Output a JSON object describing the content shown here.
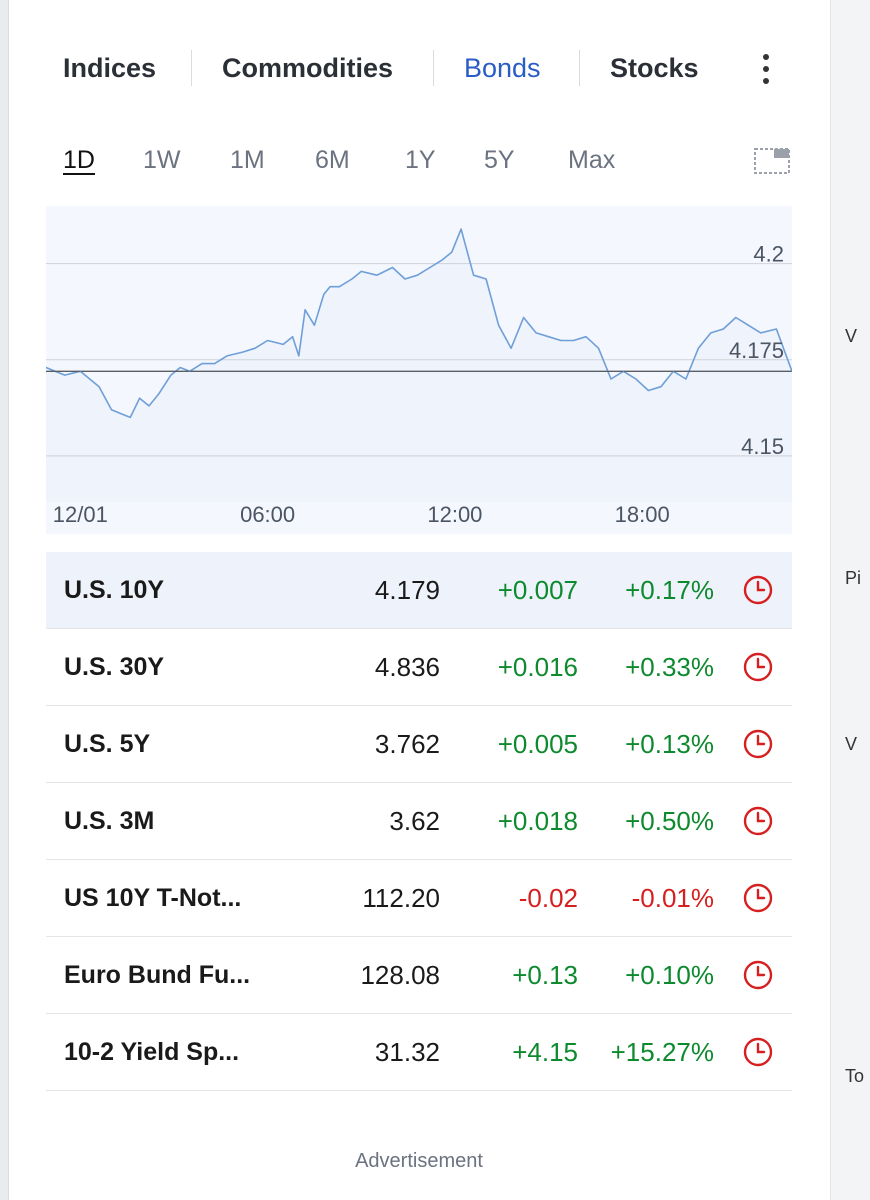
{
  "tabs": [
    {
      "label": "Indices",
      "active": false
    },
    {
      "label": "Commodities",
      "active": false
    },
    {
      "label": "Bonds",
      "active": true
    },
    {
      "label": "Stocks",
      "active": false
    }
  ],
  "ranges": [
    {
      "label": "1D",
      "active": true
    },
    {
      "label": "1W",
      "active": false
    },
    {
      "label": "1M",
      "active": false
    },
    {
      "label": "6M",
      "active": false
    },
    {
      "label": "1Y",
      "active": false
    },
    {
      "label": "5Y",
      "active": false
    },
    {
      "label": "Max",
      "active": false
    }
  ],
  "chart_data": {
    "type": "area",
    "x_tick_labels": [
      "12/01",
      "06:00",
      "12:00",
      "18:00"
    ],
    "y_tick_labels": [
      "4.2",
      "4.175",
      "4.15"
    ],
    "y_ticks": [
      4.2,
      4.175,
      4.15
    ],
    "ylim": [
      4.138,
      4.215
    ],
    "x_range_hours": [
      -1.1,
      22.8
    ],
    "reference_value": 4.172,
    "grid": true,
    "x": [
      -1.1,
      -0.5,
      0,
      0.6,
      1.0,
      1.3,
      1.6,
      1.9,
      2.2,
      2.5,
      2.9,
      3.2,
      3.5,
      3.9,
      4.3,
      4.7,
      5.2,
      5.6,
      6.0,
      6.5,
      6.8,
      7.0,
      7.2,
      7.5,
      7.8,
      8.0,
      8.3,
      8.7,
      9.0,
      9.5,
      10.0,
      10.4,
      10.8,
      11.2,
      11.6,
      11.9,
      12.2,
      12.6,
      13.0,
      13.4,
      13.8,
      14.2,
      14.6,
      15.0,
      15.4,
      15.8,
      16.2,
      16.6,
      17.0,
      17.4,
      17.8,
      18.2,
      18.6,
      19.0,
      19.4,
      19.8,
      20.2,
      20.6,
      21.0,
      21.4,
      21.8,
      22.3,
      22.8
    ],
    "values": [
      4.173,
      4.171,
      4.172,
      4.168,
      4.162,
      4.161,
      4.16,
      4.165,
      4.163,
      4.166,
      4.171,
      4.173,
      4.172,
      4.174,
      4.174,
      4.176,
      4.177,
      4.178,
      4.18,
      4.179,
      4.181,
      4.176,
      4.188,
      4.184,
      4.192,
      4.194,
      4.194,
      4.196,
      4.198,
      4.197,
      4.199,
      4.196,
      4.197,
      4.199,
      4.201,
      4.203,
      4.209,
      4.197,
      4.196,
      4.184,
      4.178,
      4.186,
      4.182,
      4.181,
      4.18,
      4.18,
      4.181,
      4.178,
      4.17,
      4.172,
      4.17,
      4.167,
      4.168,
      4.172,
      4.17,
      4.178,
      4.182,
      4.183,
      4.186,
      4.184,
      4.182,
      4.183,
      4.172
    ]
  },
  "quotes": [
    {
      "name": "U.S. 10Y",
      "last": "4.179",
      "chg": "+0.007",
      "pct": "+0.17%",
      "dir": "up",
      "selected": true
    },
    {
      "name": "U.S. 30Y",
      "last": "4.836",
      "chg": "+0.016",
      "pct": "+0.33%",
      "dir": "up",
      "selected": false
    },
    {
      "name": "U.S. 5Y",
      "last": "3.762",
      "chg": "+0.005",
      "pct": "+0.13%",
      "dir": "up",
      "selected": false
    },
    {
      "name": "U.S. 3M",
      "last": "3.62",
      "chg": "+0.018",
      "pct": "+0.50%",
      "dir": "up",
      "selected": false
    },
    {
      "name": "US 10Y T-Not...",
      "last": "112.20",
      "chg": "-0.02",
      "pct": "-0.01%",
      "dir": "down",
      "selected": false
    },
    {
      "name": "Euro Bund Fu...",
      "last": "128.08",
      "chg": "+0.13",
      "pct": "+0.10%",
      "dir": "up",
      "selected": false
    },
    {
      "name": "10-2 Yield Sp...",
      "last": "31.32",
      "chg": "+4.15",
      "pct": "+15.27%",
      "dir": "up",
      "selected": false
    }
  ],
  "advertisement_label": "Advertisement",
  "right_panel_fragments": [
    "V",
    "Pi",
    "V",
    "To"
  ],
  "colors": {
    "accent": "#2a5cc8",
    "up": "#0e8a2e",
    "down": "#d61f1f",
    "chart_line": "#6f9fd8",
    "chart_fill": "#eef3fc",
    "clock_icon": "#d61f1f"
  }
}
